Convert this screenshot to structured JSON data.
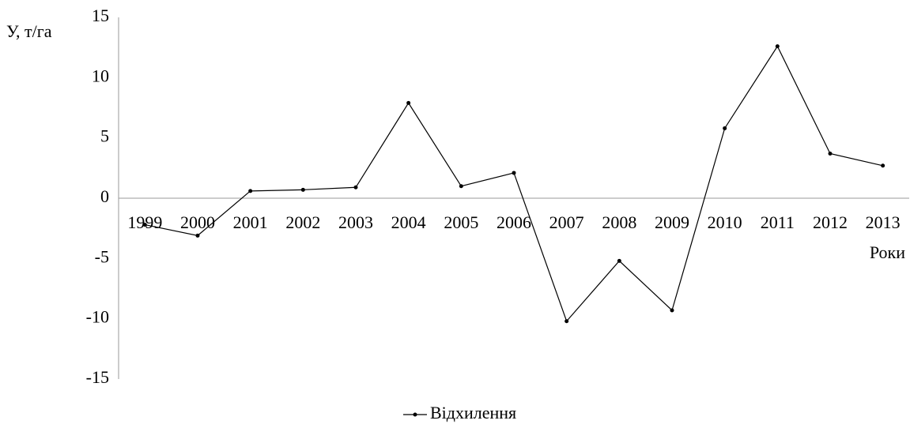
{
  "chart_data": {
    "type": "line",
    "y_label": "У, т/га",
    "x_label": "Роки",
    "categories": [
      "1999",
      "2000",
      "2001",
      "2002",
      "2003",
      "2004",
      "2005",
      "2006",
      "2007",
      "2008",
      "2009",
      "2010",
      "2011",
      "2012",
      "2013"
    ],
    "series": [
      {
        "name": "Відхилення",
        "color": "#000000",
        "values": [
          -2.2,
          -3.1,
          0.6,
          0.7,
          0.9,
          7.9,
          1.0,
          2.1,
          -10.2,
          -5.2,
          -9.3,
          5.8,
          12.6,
          3.7,
          2.7
        ]
      }
    ],
    "ylim": [
      -15,
      15
    ],
    "yticks": [
      -15,
      -10,
      -5,
      0,
      5,
      10,
      15
    ],
    "grid": false,
    "legend": "bottom"
  }
}
